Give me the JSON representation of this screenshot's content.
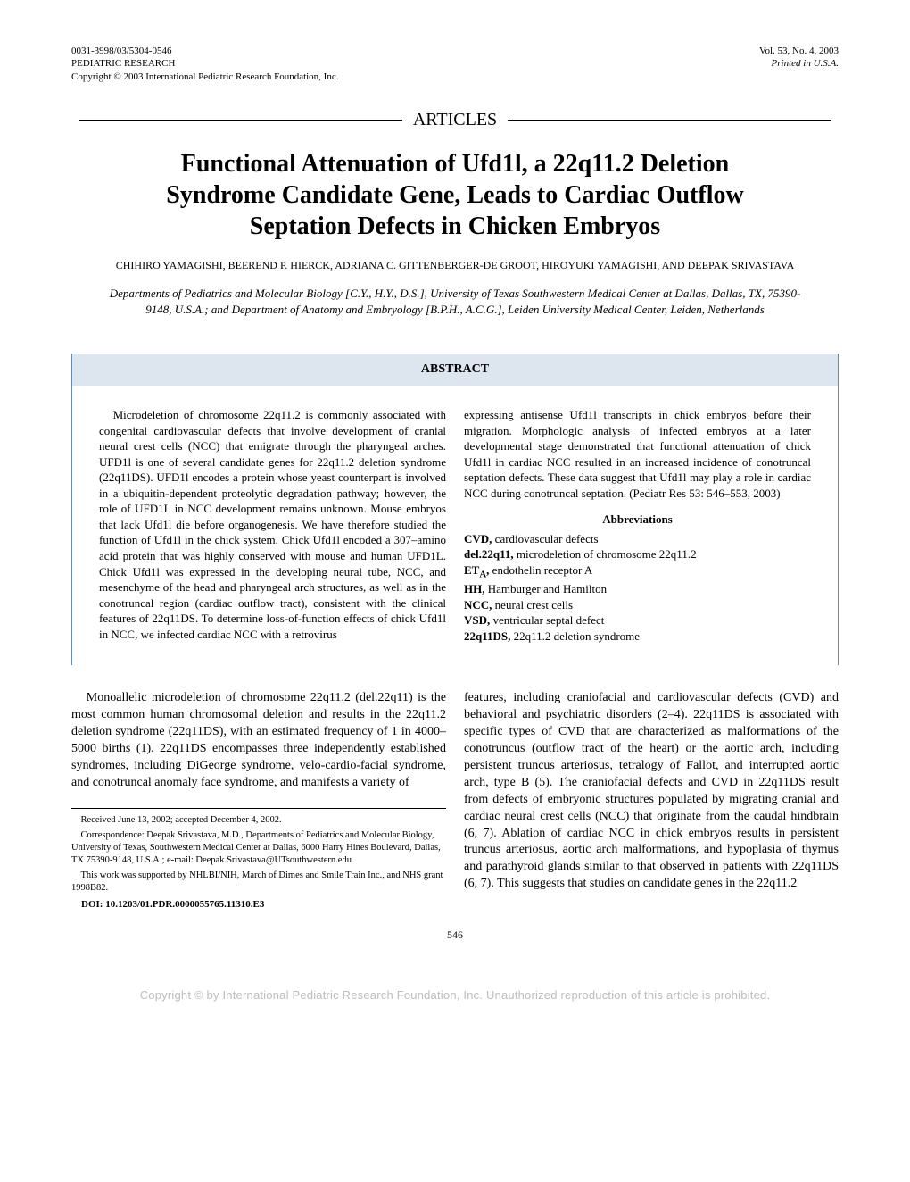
{
  "header": {
    "left_line1": "0031-3998/03/5304-0546",
    "left_line2": "PEDIATRIC RESEARCH",
    "left_line3": "Copyright © 2003 International Pediatric Research Foundation, Inc.",
    "right_line1": "Vol. 53, No. 4, 2003",
    "right_line2": "Printed in U.S.A."
  },
  "section_label": "ARTICLES",
  "title": "Functional Attenuation of Ufd1l, a 22q11.2 Deletion Syndrome Candidate Gene, Leads to Cardiac Outflow Septation Defects in Chicken Embryos",
  "authors": "CHIHIRO YAMAGISHI, BEEREND P. HIERCK, ADRIANA C. GITTENBERGER-DE GROOT, HIROYUKI YAMAGISHI, AND DEEPAK SRIVASTAVA",
  "affiliations": "Departments of Pediatrics and Molecular Biology [C.Y., H.Y., D.S.], University of Texas Southwestern Medical Center at Dallas, Dallas, TX, 75390-9148, U.S.A.; and Department of Anatomy and Embryology [B.P.H., A.C.G.], Leiden University Medical Center, Leiden, Netherlands",
  "abstract": {
    "heading": "ABSTRACT",
    "left": "Microdeletion of chromosome 22q11.2 is commonly associated with congenital cardiovascular defects that involve development of cranial neural crest cells (NCC) that emigrate through the pharyngeal arches. UFD1l is one of several candidate genes for 22q11.2 deletion syndrome (22q11DS). UFD1l encodes a protein whose yeast counterpart is involved in a ubiquitin-dependent proteolytic degradation pathway; however, the role of UFD1L in NCC development remains unknown. Mouse embryos that lack Ufd1l die before organogenesis. We have therefore studied the function of Ufd1l in the chick system. Chick Ufd1l encoded a 307–amino acid protein that was highly conserved with mouse and human UFD1L. Chick Ufd1l was expressed in the developing neural tube, NCC, and mesenchyme of the head and pharyngeal arch structures, as well as in the conotruncal region (cardiac outflow tract), consistent with the clinical features of 22q11DS. To determine loss-of-function effects of chick Ufd1l in NCC, we infected cardiac NCC with a retrovirus",
    "right_top": "expressing antisense Ufd1l transcripts in chick embryos before their migration. Morphologic analysis of infected embryos at a later developmental stage demonstrated that functional attenuation of chick Ufd1l in cardiac NCC resulted in an increased incidence of conotruncal septation defects. These data suggest that Ufd1l may play a role in cardiac NCC during conotruncal septation. (Pediatr Res 53: 546–553, 2003)",
    "abbrev_heading": "Abbreviations",
    "abbrev": [
      {
        "term": "CVD,",
        "def": " cardiovascular defects"
      },
      {
        "term": "del.22q11,",
        "def": " microdeletion of chromosome 22q11.2"
      },
      {
        "term": "ET_A,",
        "def": " endothelin receptor A"
      },
      {
        "term": "HH,",
        "def": " Hamburger and Hamilton"
      },
      {
        "term": "NCC,",
        "def": " neural crest cells"
      },
      {
        "term": "VSD,",
        "def": " ventricular septal defect"
      },
      {
        "term": "22q11DS,",
        "def": " 22q11.2 deletion syndrome"
      }
    ]
  },
  "body": {
    "left": "Monoallelic microdeletion of chromosome 22q11.2 (del.22q11) is the most common human chromosomal deletion and results in the 22q11.2 deletion syndrome (22q11DS), with an estimated frequency of 1 in 4000–5000 births (1). 22q11DS encompasses three independently established syndromes, including DiGeorge syndrome, velo-cardio-facial syndrome, and conotruncal anomaly face syndrome, and manifests a variety of",
    "right": "features, including craniofacial and cardiovascular defects (CVD) and behavioral and psychiatric disorders (2–4). 22q11DS is associated with specific types of CVD that are characterized as malformations of the conotruncus (outflow tract of the heart) or the aortic arch, including persistent truncus arteriosus, tetralogy of Fallot, and interrupted aortic arch, type B (5). The craniofacial defects and CVD in 22q11DS result from defects of embryonic structures populated by migrating cranial and cardiac neural crest cells (NCC) that originate from the caudal hindbrain (6, 7). Ablation of cardiac NCC in chick embryos results in persistent truncus arteriosus, aortic arch malformations, and hypoplasia of thymus and parathyroid glands similar to that observed in patients with 22q11DS (6, 7). This suggests that studies on candidate genes in the 22q11.2"
  },
  "footnotes": {
    "f1": "Received June 13, 2002; accepted December 4, 2002.",
    "f2": "Correspondence: Deepak Srivastava, M.D., Departments of Pediatrics and Molecular Biology, University of Texas, Southwestern Medical Center at Dallas, 6000 Harry Hines Boulevard, Dallas, TX 75390-9148, U.S.A.; e-mail: Deepak.Srivastava@UTsouthwestern.edu",
    "f3": "This work was supported by NHLBI/NIH, March of Dimes and Smile Train Inc., and NHS grant 1998B82.",
    "doi": "DOI: 10.1203/01.PDR.0000055765.11310.E3"
  },
  "page_number": "546",
  "copyright_bar": "Copyright © by International Pediatric Research Foundation, Inc. Unauthorized reproduction of this article is prohibited."
}
